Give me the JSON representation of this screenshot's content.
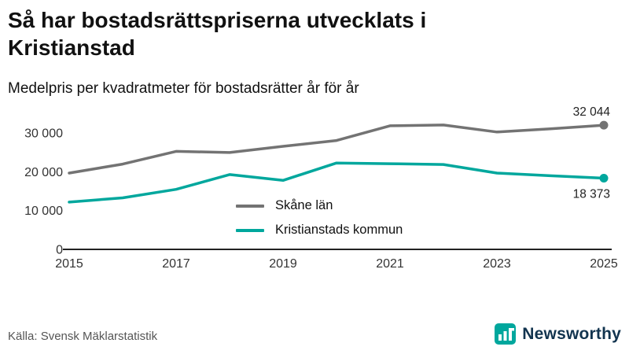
{
  "header": {
    "title": "Så har bostadsrättspriserna utvecklats i Kristianstad",
    "subtitle": "Medelpris per kvadratmeter för bostadsrätter år för år"
  },
  "footer": {
    "source": "Källa: Svensk Mäklarstatistik",
    "brand": "Newsworthy"
  },
  "colors": {
    "skane_line": "#737373",
    "kristianstad_line": "#00a79d",
    "axis": "#222222",
    "brand_text": "#12344f",
    "brand_icon": "#00a79d"
  },
  "chart_data": {
    "type": "line",
    "x": [
      2015,
      2016,
      2017,
      2018,
      2019,
      2020,
      2021,
      2022,
      2023,
      2024,
      2025
    ],
    "series": [
      {
        "name": "Skåne län",
        "color_key": "skane_line",
        "values": [
          19700,
          22000,
          25300,
          25000,
          26600,
          28100,
          31900,
          32100,
          30300,
          31100,
          32044
        ],
        "end_label": "32 044"
      },
      {
        "name": "Kristianstads kommun",
        "color_key": "kristianstad_line",
        "values": [
          12200,
          13300,
          15500,
          19300,
          17800,
          22300,
          22100,
          21900,
          19700,
          19000,
          18373
        ],
        "end_label": "18 373"
      }
    ],
    "yticks": [
      0,
      10000,
      20000,
      30000
    ],
    "ytick_labels": [
      "0",
      "10 000",
      "20 000",
      "30 000"
    ],
    "xticks": [
      2015,
      2017,
      2019,
      2021,
      2023,
      2025
    ],
    "ylim": [
      0,
      33500
    ],
    "grid": false,
    "legend_position": "inside-center",
    "title": "Så har bostadsrättspriserna utvecklats i Kristianstad",
    "xlabel": "",
    "ylabel": "Medelpris per kvadratmeter"
  }
}
